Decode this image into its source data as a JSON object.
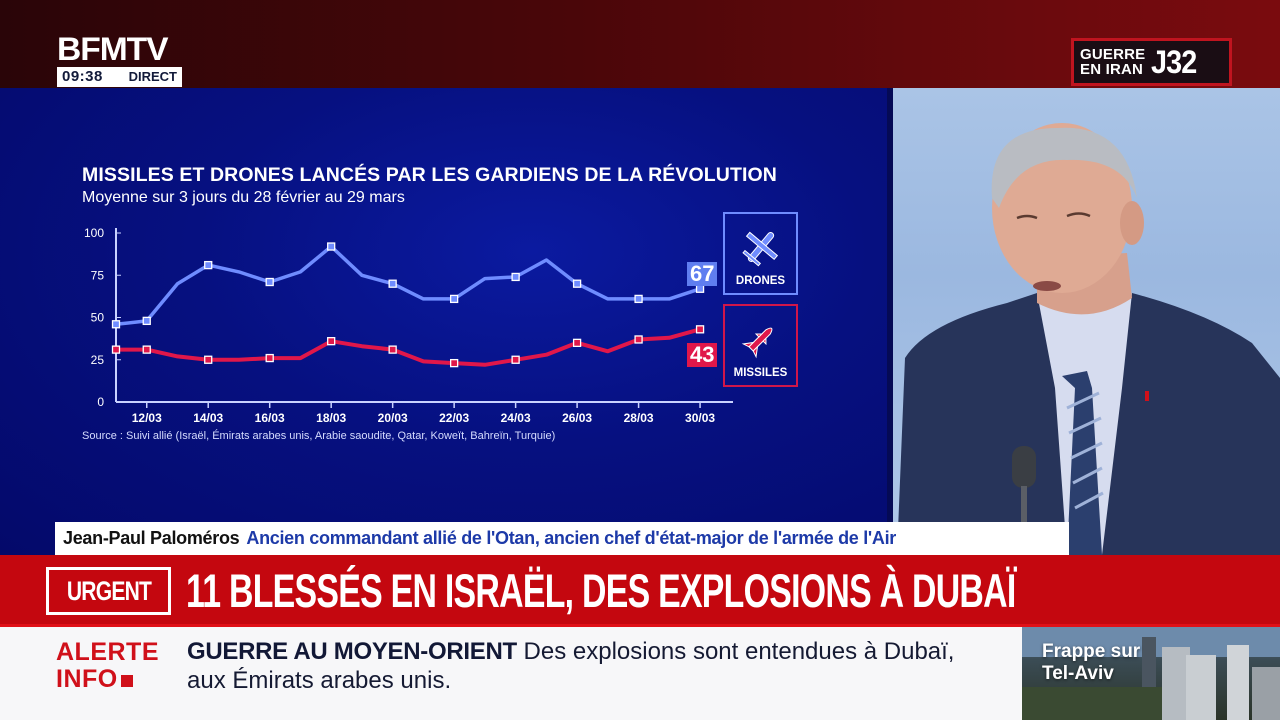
{
  "channel": {
    "logo": "BFMTV",
    "time": "09:38",
    "live_label": "DIRECT"
  },
  "day_badge": {
    "line1": "GUERRE",
    "line2": "EN IRAN",
    "day": "J32",
    "border_color": "#c0141f"
  },
  "chart": {
    "title": "MISSILES ET DRONES LANCÉS PAR LES GARDIENS DE LA RÉVOLUTION",
    "subtitle": "Moyenne sur 3 jours du 28 février au 29 mars",
    "source": "Source : Suivi allié (Israël, Émirats arabes unis, Arabie saoudite, Qatar, Koweït, Bahreïn, Turquie)",
    "y_ticks": [
      "0",
      "25",
      "50",
      "75",
      "100"
    ],
    "x_ticks": [
      "12/03",
      "14/03",
      "16/03",
      "18/03",
      "20/03",
      "22/03",
      "24/03",
      "26/03",
      "28/03",
      "30/03"
    ],
    "drones_last_value": "67",
    "missiles_last_value": "43",
    "legend": {
      "drones_label": "DRONES",
      "missiles_label": "MISSILES"
    },
    "colors": {
      "drones": "#6f8cff",
      "missiles": "#e0174a",
      "background": "#061080"
    }
  },
  "chart_data": {
    "type": "line",
    "title": "MISSILES ET DRONES LANCÉS PAR LES GARDIENS DE LA RÉVOLUTION",
    "subtitle": "Moyenne sur 3 jours du 28 février au 29 mars",
    "xlabel": "",
    "ylabel": "",
    "x": [
      "11/03",
      "12/03",
      "13/03",
      "14/03",
      "15/03",
      "16/03",
      "17/03",
      "18/03",
      "19/03",
      "20/03",
      "21/03",
      "22/03",
      "23/03",
      "24/03",
      "25/03",
      "26/03",
      "27/03",
      "28/03",
      "29/03",
      "30/03"
    ],
    "series": [
      {
        "name": "Drones",
        "color": "#6f8cff",
        "values": [
          46,
          48,
          70,
          81,
          77,
          71,
          77,
          92,
          75,
          70,
          61,
          61,
          73,
          74,
          84,
          70,
          61,
          61,
          61,
          67
        ]
      },
      {
        "name": "Missiles",
        "color": "#e0174a",
        "values": [
          31,
          31,
          27,
          25,
          25,
          26,
          26,
          36,
          33,
          31,
          24,
          23,
          22,
          25,
          28,
          35,
          30,
          37,
          38,
          43
        ]
      }
    ],
    "end_labels": {
      "Drones": 67,
      "Missiles": 43
    },
    "ylim": [
      0,
      100
    ],
    "y_ticks": [
      0,
      25,
      50,
      75,
      100
    ],
    "grid": false,
    "legend_position": "right",
    "source": "Source : Suivi allié (Israël, Émirats arabes unis, Arabie saoudite, Qatar, Koweït, Bahreïn, Turquie)"
  },
  "guest": {
    "name": "Jean-Paul Paloméros",
    "role": "Ancien commandant allié de l'Otan, ancien chef d'état-major de l'armée de l'Air"
  },
  "urgent": {
    "tag": "URGENT",
    "headline": "11 BLESSÉS EN ISRAËL, DES EXPLOSIONS À DUBAÏ",
    "color": "#c4070f"
  },
  "alert": {
    "logo_line1": "ALERTE",
    "logo_line2": "INFO",
    "topic": "GUERRE AU MOYEN-ORIENT",
    "text": "Des explosions sont entendues à Dubaï, aux Émirats arabes unis."
  },
  "thumbnail": {
    "line1": "Frappe sur",
    "line2": "Tel-Aviv"
  }
}
